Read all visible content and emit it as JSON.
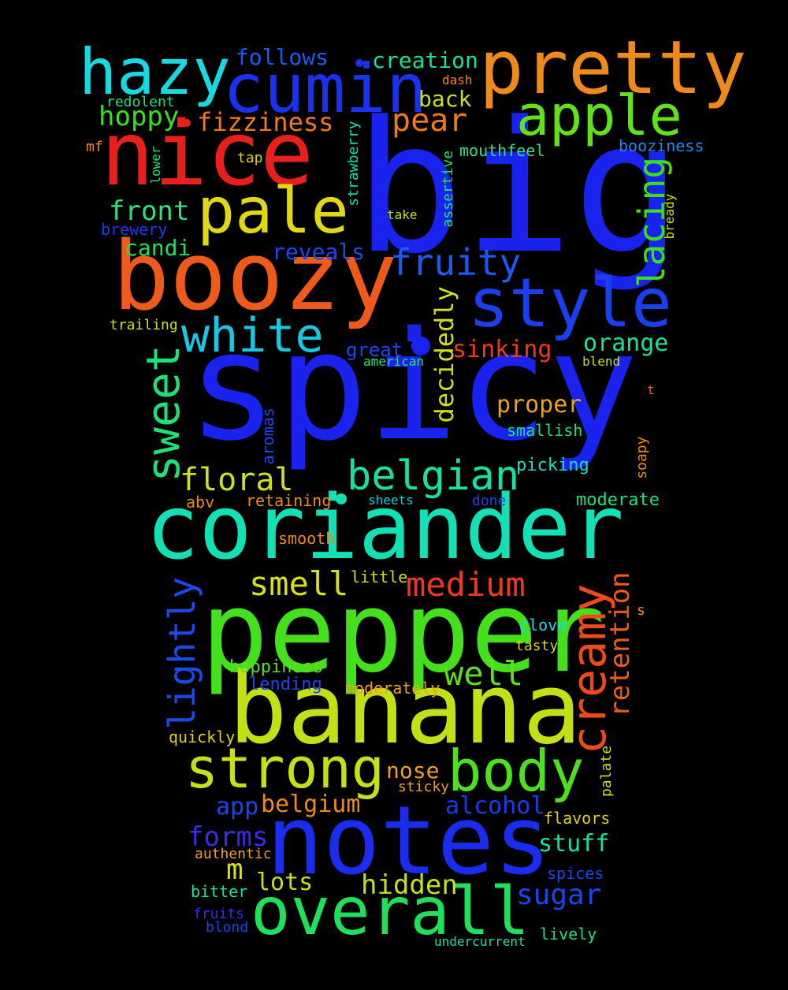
{
  "words": [
    {
      "text": "spicy",
      "color": "#1a22ee",
      "vertical": false
    },
    {
      "text": "big",
      "color": "#1a22ee",
      "vertical": false
    },
    {
      "text": "coriander",
      "color": "#14e0b6",
      "vertical": false
    },
    {
      "text": "pepper",
      "color": "#45e01c",
      "vertical": false
    },
    {
      "text": "banana",
      "color": "#c3e016",
      "vertical": false
    },
    {
      "text": "notes",
      "color": "#1a2cee",
      "vertical": false
    },
    {
      "text": "nice",
      "color": "#e8201c",
      "vertical": false
    },
    {
      "text": "boozy",
      "color": "#ee5a1a",
      "vertical": false
    },
    {
      "text": "overall",
      "color": "#1fe05a",
      "vertical": false
    },
    {
      "text": "pretty",
      "color": "#ee8a1a",
      "vertical": false
    },
    {
      "text": "cumin",
      "color": "#1a32ee",
      "vertical": false
    },
    {
      "text": "hazy",
      "color": "#18d8e0",
      "vertical": false
    },
    {
      "text": "pale",
      "color": "#e0d816",
      "vertical": false
    },
    {
      "text": "style",
      "color": "#1a40ee",
      "vertical": false
    },
    {
      "text": "apple",
      "color": "#62e01a",
      "vertical": false
    },
    {
      "text": "white",
      "color": "#18c8e0",
      "vertical": false
    },
    {
      "text": "strong",
      "color": "#c6e016",
      "vertical": false
    },
    {
      "text": "body",
      "color": "#4ee01c",
      "vertical": false
    },
    {
      "text": "sweet",
      "color": "#1ce07a",
      "vertical": true
    },
    {
      "text": "creamy",
      "color": "#ee4a1a",
      "vertical": true
    },
    {
      "text": "belgian",
      "color": "#16e0a6",
      "vertical": false
    },
    {
      "text": "fruity",
      "color": "#1a5aee",
      "vertical": false
    },
    {
      "text": "lightly",
      "color": "#1a4aee",
      "vertical": true
    },
    {
      "text": "lacing",
      "color": "#3ae01c",
      "vertical": true
    },
    {
      "text": "medium",
      "color": "#ee3a1a",
      "vertical": false
    },
    {
      "text": "smell",
      "color": "#d6e016",
      "vertical": false
    },
    {
      "text": "well",
      "color": "#5ae01a",
      "vertical": false
    },
    {
      "text": "floral",
      "color": "#d0e016",
      "vertical": false
    },
    {
      "text": "retention",
      "color": "#ee5a1a",
      "vertical": true
    },
    {
      "text": "decidedly",
      "color": "#d0e016",
      "vertical": true
    },
    {
      "text": "pear",
      "color": "#ee7a1a",
      "vertical": false
    },
    {
      "text": "fizziness",
      "color": "#ee7a1a",
      "vertical": false
    },
    {
      "text": "hoppy",
      "color": "#3ae01c",
      "vertical": false
    },
    {
      "text": "front",
      "color": "#2ce07a",
      "vertical": false
    },
    {
      "text": "creation",
      "color": "#16e0a0",
      "vertical": false
    },
    {
      "text": "follows",
      "color": "#1a5aee",
      "vertical": false
    },
    {
      "text": "back",
      "color": "#c6e016",
      "vertical": false
    },
    {
      "text": "orange",
      "color": "#16e0a6",
      "vertical": false
    },
    {
      "text": "sinking",
      "color": "#ee3a1a",
      "vertical": false
    },
    {
      "text": "proper",
      "color": "#eea01a",
      "vertical": false
    },
    {
      "text": "reveals",
      "color": "#1a46ee",
      "vertical": false
    },
    {
      "text": "candi",
      "color": "#1ce05a",
      "vertical": false
    },
    {
      "text": "forms",
      "color": "#3a2aee",
      "vertical": false
    },
    {
      "text": "alcohol",
      "color": "#1a3cee",
      "vertical": false
    },
    {
      "text": "sugar",
      "color": "#1a46ee",
      "vertical": false
    },
    {
      "text": "hidden",
      "color": "#c6e016",
      "vertical": false
    },
    {
      "text": "lots",
      "color": "#c6e016",
      "vertical": false
    },
    {
      "text": "stuff",
      "color": "#16e0a6",
      "vertical": false
    },
    {
      "text": "belgium",
      "color": "#ee8a1a",
      "vertical": false
    },
    {
      "text": "app",
      "color": "#1a46ee",
      "vertical": false
    },
    {
      "text": "m",
      "color": "#d6e016",
      "vertical": false
    },
    {
      "text": "nose",
      "color": "#eea01a",
      "vertical": false
    },
    {
      "text": "great",
      "color": "#1a46ee",
      "vertical": false
    },
    {
      "text": "mouthfeel",
      "color": "#2ce07a",
      "vertical": false
    },
    {
      "text": "booziness",
      "color": "#1a8aee",
      "vertical": false
    },
    {
      "text": "hoppiness",
      "color": "#5ae01a",
      "vertical": false
    },
    {
      "text": "lending",
      "color": "#1a46ee",
      "vertical": false
    },
    {
      "text": "moderately",
      "color": "#eea01a",
      "vertical": false
    },
    {
      "text": "moderate",
      "color": "#1ce07a",
      "vertical": false
    },
    {
      "text": "smallish",
      "color": "#1ce07a",
      "vertical": false
    },
    {
      "text": "picking",
      "color": "#16e0c0",
      "vertical": false
    },
    {
      "text": "retaining",
      "color": "#ee8a1a",
      "vertical": false
    },
    {
      "text": "abv",
      "color": "#ee8a1a",
      "vertical": false
    },
    {
      "text": "smooth",
      "color": "#ee8a1a",
      "vertical": false
    },
    {
      "text": "little",
      "color": "#c6e016",
      "vertical": false
    },
    {
      "text": "clove",
      "color": "#18d8e0",
      "vertical": false
    },
    {
      "text": "tasty",
      "color": "#e0d016",
      "vertical": false
    },
    {
      "text": "quickly",
      "color": "#e0d016",
      "vertical": false
    },
    {
      "text": "sticky",
      "color": "#eea01a",
      "vertical": false
    },
    {
      "text": "flavors",
      "color": "#e0d016",
      "vertical": false
    },
    {
      "text": "spices",
      "color": "#1a46ee",
      "vertical": false
    },
    {
      "text": "bitter",
      "color": "#16e0a6",
      "vertical": false
    },
    {
      "text": "authentic",
      "color": "#eea01a",
      "vertical": false
    },
    {
      "text": "fruits",
      "color": "#3a2aee",
      "vertical": false
    },
    {
      "text": "blond",
      "color": "#1a46ee",
      "vertical": false
    },
    {
      "text": "undercurrent",
      "color": "#16e0a6",
      "vertical": false
    },
    {
      "text": "lively",
      "color": "#1ce07a",
      "vertical": false
    },
    {
      "text": "american",
      "color": "#2ce07a",
      "vertical": false
    },
    {
      "text": "blend",
      "color": "#c6e016",
      "vertical": false
    },
    {
      "text": "sheets",
      "color": "#18c8e0",
      "vertical": false
    },
    {
      "text": "done",
      "color": "#1a46ee",
      "vertical": false
    },
    {
      "text": "redolent",
      "color": "#1ce07a",
      "vertical": false
    },
    {
      "text": "dash",
      "color": "#ee8a1a",
      "vertical": false
    },
    {
      "text": "mf",
      "color": "#ee8a1a",
      "vertical": false
    },
    {
      "text": "tap",
      "color": "#e0d016",
      "vertical": false
    },
    {
      "text": "take",
      "color": "#c6e016",
      "vertical": false
    },
    {
      "text": "brewery",
      "color": "#1a3cee",
      "vertical": false
    },
    {
      "text": "trailing",
      "color": "#c6e016",
      "vertical": false
    },
    {
      "text": "t",
      "color": "#ee5a1a",
      "vertical": false
    },
    {
      "text": "s",
      "color": "#ee8a1a",
      "vertical": false
    },
    {
      "text": "lower",
      "color": "#1ce07a",
      "vertical": true
    },
    {
      "text": "strawberry",
      "color": "#16e0a6",
      "vertical": true
    },
    {
      "text": "assertive",
      "color": "#1ce07a",
      "vertical": true
    },
    {
      "text": "bready",
      "color": "#c6e016",
      "vertical": true
    },
    {
      "text": "aromas",
      "color": "#1a46ee",
      "vertical": true
    },
    {
      "text": "soapy",
      "color": "#ee8a1a",
      "vertical": true
    },
    {
      "text": "palate",
      "color": "#c6e016",
      "vertical": true
    }
  ]
}
